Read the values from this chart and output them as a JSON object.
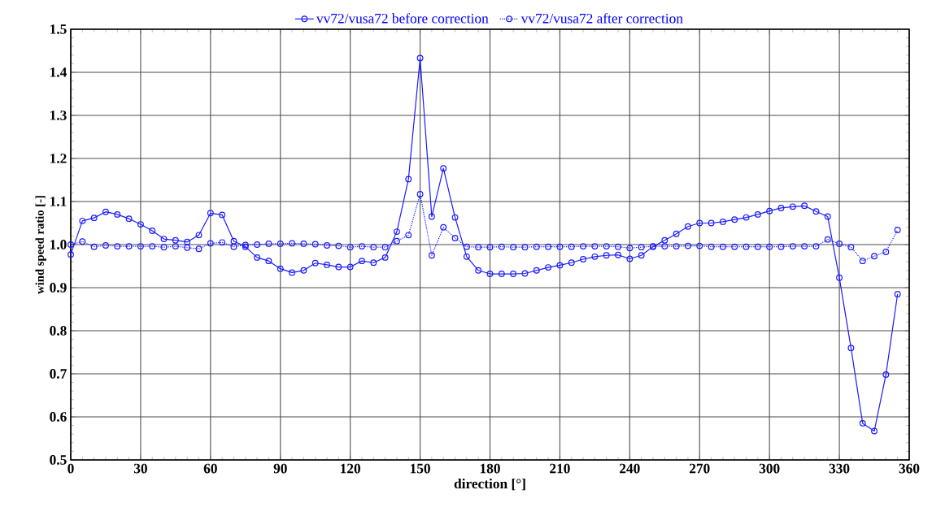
{
  "chart_data": {
    "type": "line",
    "xlabel": "direction [°]",
    "ylabel": "wind speed ratio [-]",
    "x": [
      0,
      5,
      10,
      15,
      20,
      25,
      30,
      35,
      40,
      45,
      50,
      55,
      60,
      65,
      70,
      75,
      80,
      85,
      90,
      95,
      100,
      105,
      110,
      115,
      120,
      125,
      130,
      135,
      140,
      145,
      150,
      155,
      160,
      165,
      170,
      175,
      180,
      185,
      190,
      195,
      200,
      205,
      210,
      215,
      220,
      225,
      230,
      235,
      240,
      245,
      250,
      255,
      260,
      265,
      270,
      275,
      280,
      285,
      290,
      295,
      300,
      305,
      310,
      315,
      320,
      325,
      330,
      335,
      340,
      345,
      350,
      355
    ],
    "series": [
      {
        "name": "vv72/vusa72 before correction",
        "color": "#1a1aff",
        "line_style": "solid",
        "values": [
          0.977,
          1.055,
          1.062,
          1.076,
          1.07,
          1.06,
          1.047,
          1.032,
          1.013,
          1.01,
          1.006,
          1.022,
          1.073,
          1.069,
          1.008,
          0.995,
          0.97,
          0.962,
          0.944,
          0.935,
          0.94,
          0.957,
          0.953,
          0.948,
          0.948,
          0.962,
          0.958,
          0.97,
          1.03,
          1.152,
          1.433,
          1.065,
          1.177,
          1.063,
          0.972,
          0.94,
          0.932,
          0.932,
          0.932,
          0.933,
          0.94,
          0.947,
          0.952,
          0.958,
          0.966,
          0.972,
          0.975,
          0.976,
          0.967,
          0.975,
          0.995,
          1.01,
          1.025,
          1.042,
          1.05,
          1.05,
          1.053,
          1.058,
          1.063,
          1.07,
          1.078,
          1.085,
          1.088,
          1.09,
          1.077,
          1.065,
          0.923,
          0.76,
          0.585,
          0.567,
          0.698,
          0.885
        ]
      },
      {
        "name": "vv72/vusa72 after correction",
        "color": "#1a1aff",
        "line_style": "dotted",
        "values": [
          1.0,
          1.007,
          0.995,
          0.998,
          0.996,
          0.996,
          0.996,
          0.996,
          0.994,
          0.996,
          0.993,
          0.99,
          1.003,
          1.005,
          0.995,
          0.999,
          1.0,
          1.002,
          1.002,
          1.003,
          1.002,
          1.001,
          0.998,
          0.997,
          0.994,
          0.996,
          0.994,
          0.994,
          1.008,
          1.022,
          1.117,
          0.975,
          1.04,
          1.015,
          0.995,
          0.994,
          0.994,
          0.995,
          0.994,
          0.994,
          0.995,
          0.995,
          0.995,
          0.995,
          0.996,
          0.996,
          0.996,
          0.995,
          0.992,
          0.994,
          0.996,
          0.996,
          0.996,
          0.997,
          0.997,
          0.995,
          0.995,
          0.995,
          0.995,
          0.995,
          0.995,
          0.995,
          0.996,
          0.996,
          0.996,
          1.012,
          1.002,
          0.994,
          0.962,
          0.973,
          0.983,
          1.034
        ]
      }
    ],
    "xlim": [
      0,
      360
    ],
    "xticks": [
      0,
      30,
      60,
      90,
      120,
      150,
      180,
      210,
      240,
      270,
      300,
      330,
      360
    ],
    "ylim": [
      0.5,
      1.5
    ],
    "yticks": [
      0.5,
      0.6,
      0.7,
      0.8,
      0.9,
      {
        "value": 1,
        "label": "1.0"
      },
      1.1,
      1.2,
      1.3,
      1.4,
      1.5
    ],
    "grid": true,
    "legend": "top",
    "marker": "circle"
  }
}
